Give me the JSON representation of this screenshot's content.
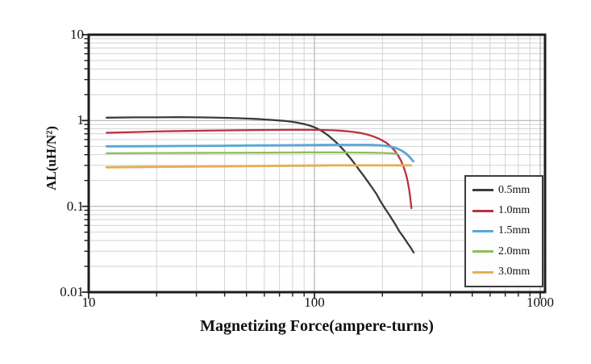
{
  "chart_data": {
    "type": "line",
    "title": "",
    "xlabel": "Magnetizing Force(ampere-turns)",
    "ylabel": "AL(uH/N²)",
    "x_scale": "log",
    "y_scale": "log",
    "xlim": [
      10,
      1000
    ],
    "ylim": [
      0.01,
      10
    ],
    "grid": true,
    "legend_position": "inside-middle-right",
    "x_tick_labels": [
      "10",
      "100",
      "1000"
    ],
    "y_tick_labels": [
      "10",
      "1",
      "0.1",
      "0.01"
    ],
    "axis_color": "#1c1c1c",
    "grid_minor_color": "#d2d2d2",
    "grid_major_color": "#b5b5b5",
    "series": [
      {
        "name": "0.5mm",
        "color": "#3b3b3b",
        "points": [
          [
            12,
            1.08
          ],
          [
            16,
            1.09
          ],
          [
            20,
            1.09
          ],
          [
            25,
            1.095
          ],
          [
            30,
            1.09
          ],
          [
            35,
            1.085
          ],
          [
            40,
            1.075
          ],
          [
            45,
            1.065
          ],
          [
            50,
            1.055
          ],
          [
            55,
            1.045
          ],
          [
            60,
            1.03
          ],
          [
            65,
            1.015
          ],
          [
            70,
            1.0
          ],
          [
            75,
            0.985
          ],
          [
            80,
            0.965
          ],
          [
            85,
            0.94
          ],
          [
            90,
            0.91
          ],
          [
            95,
            0.875
          ],
          [
            100,
            0.835
          ],
          [
            105,
            0.785
          ],
          [
            110,
            0.73
          ],
          [
            115,
            0.67
          ],
          [
            120,
            0.61
          ],
          [
            125,
            0.555
          ],
          [
            130,
            0.5
          ],
          [
            135,
            0.45
          ],
          [
            140,
            0.4
          ],
          [
            146,
            0.35
          ],
          [
            152,
            0.305
          ],
          [
            158,
            0.265
          ],
          [
            165,
            0.228
          ],
          [
            172,
            0.196
          ],
          [
            180,
            0.165
          ],
          [
            188,
            0.14
          ],
          [
            196,
            0.115
          ],
          [
            205,
            0.095
          ],
          [
            215,
            0.079
          ],
          [
            227,
            0.063
          ],
          [
            238,
            0.051
          ],
          [
            248,
            0.044
          ],
          [
            257,
            0.038
          ],
          [
            265,
            0.034
          ],
          [
            271,
            0.031
          ],
          [
            275,
            0.029
          ]
        ]
      },
      {
        "name": "1.0mm",
        "color": "#b8333f",
        "points": [
          [
            12,
            0.72
          ],
          [
            16,
            0.735
          ],
          [
            20,
            0.745
          ],
          [
            26,
            0.755
          ],
          [
            33,
            0.762
          ],
          [
            42,
            0.768
          ],
          [
            52,
            0.773
          ],
          [
            64,
            0.777
          ],
          [
            78,
            0.78
          ],
          [
            92,
            0.78
          ],
          [
            106,
            0.777
          ],
          [
            120,
            0.77
          ],
          [
            134,
            0.757
          ],
          [
            148,
            0.738
          ],
          [
            160,
            0.715
          ],
          [
            172,
            0.685
          ],
          [
            184,
            0.648
          ],
          [
            196,
            0.603
          ],
          [
            208,
            0.55
          ],
          [
            218,
            0.497
          ],
          [
            227,
            0.443
          ],
          [
            235,
            0.39
          ],
          [
            242,
            0.338
          ],
          [
            248,
            0.29
          ],
          [
            253,
            0.248
          ],
          [
            257,
            0.212
          ],
          [
            260,
            0.183
          ],
          [
            263,
            0.154
          ],
          [
            265,
            0.133
          ],
          [
            267,
            0.113
          ],
          [
            268,
            0.102
          ],
          [
            269,
            0.095
          ]
        ]
      },
      {
        "name": "1.5mm",
        "color": "#58a7d7",
        "points": [
          [
            12,
            0.5
          ],
          [
            18,
            0.502
          ],
          [
            26,
            0.505
          ],
          [
            38,
            0.508
          ],
          [
            55,
            0.512
          ],
          [
            75,
            0.515
          ],
          [
            100,
            0.518
          ],
          [
            125,
            0.52
          ],
          [
            150,
            0.52
          ],
          [
            175,
            0.52
          ],
          [
            195,
            0.515
          ],
          [
            210,
            0.505
          ],
          [
            222,
            0.49
          ],
          [
            233,
            0.47
          ],
          [
            243,
            0.447
          ],
          [
            252,
            0.42
          ],
          [
            259,
            0.395
          ],
          [
            265,
            0.372
          ],
          [
            269,
            0.355
          ],
          [
            272,
            0.342
          ],
          [
            274,
            0.335
          ]
        ]
      },
      {
        "name": "2.0mm",
        "color": "#8fbe58",
        "points": [
          [
            12,
            0.415
          ],
          [
            20,
            0.418
          ],
          [
            35,
            0.42
          ],
          [
            60,
            0.422
          ],
          [
            90,
            0.425
          ],
          [
            120,
            0.425
          ],
          [
            150,
            0.424
          ],
          [
            175,
            0.422
          ],
          [
            200,
            0.419
          ],
          [
            215,
            0.416
          ],
          [
            226,
            0.412
          ],
          [
            233,
            0.408
          ]
        ]
      },
      {
        "name": "3.0mm",
        "color": "#e5ad57",
        "points": [
          [
            12,
            0.285
          ],
          [
            20,
            0.289
          ],
          [
            35,
            0.292
          ],
          [
            60,
            0.296
          ],
          [
            90,
            0.298
          ],
          [
            120,
            0.3
          ],
          [
            150,
            0.3
          ],
          [
            180,
            0.3
          ],
          [
            210,
            0.3
          ],
          [
            235,
            0.3
          ],
          [
            252,
            0.3
          ],
          [
            262,
            0.3
          ],
          [
            267,
            0.3
          ]
        ]
      }
    ]
  }
}
